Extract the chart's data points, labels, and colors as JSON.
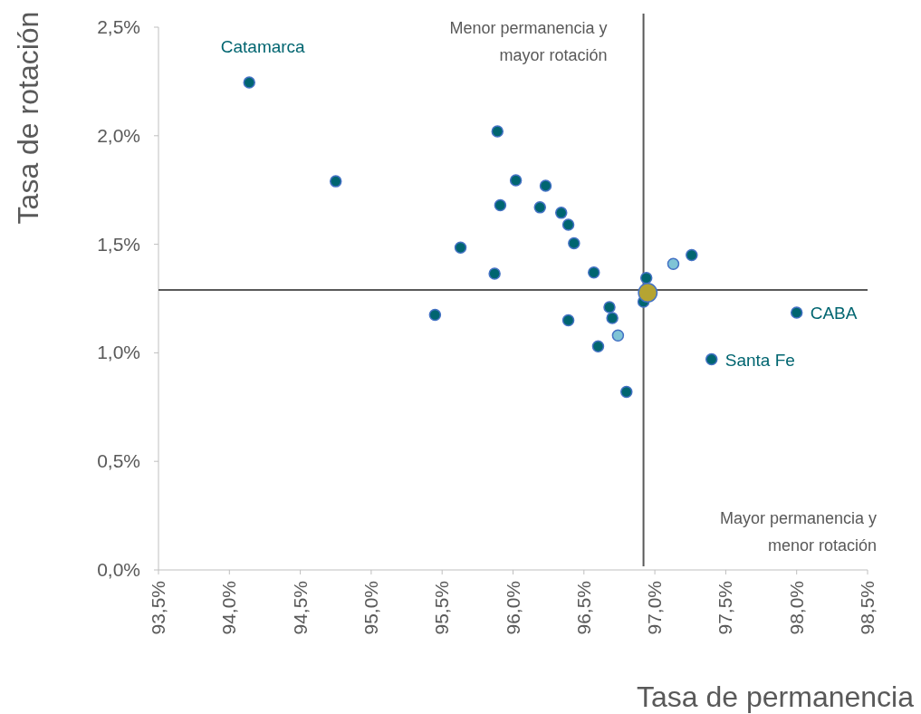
{
  "chart_data": {
    "type": "scatter",
    "xlabel": "Tasa de permanencia",
    "ylabel": "Tasa de rotación",
    "marker": "circle",
    "grid": false,
    "xlim": [
      93.5,
      98.5
    ],
    "xticks": [
      {
        "value": 93.5,
        "label": "93,5%"
      },
      {
        "value": 94,
        "label": "94,0%"
      },
      {
        "value": 94.5,
        "label": "94,5%"
      },
      {
        "value": 95,
        "label": "95,0%"
      },
      {
        "value": 95.5,
        "label": "95,5%"
      },
      {
        "value": 96,
        "label": "96,0%"
      },
      {
        "value": 96.5,
        "label": "96,5%"
      },
      {
        "value": 97,
        "label": "97,0%"
      },
      {
        "value": 97.5,
        "label": "97,5%"
      },
      {
        "value": 98,
        "label": "98,0%"
      },
      {
        "value": 98.5,
        "label": "98,5%"
      }
    ],
    "ylim": [
      0,
      2.5
    ],
    "yticks": [
      {
        "value": 0,
        "label": "0,0%"
      },
      {
        "value": 0.5,
        "label": "0,5%"
      },
      {
        "value": 1,
        "label": "1,0%"
      },
      {
        "value": 1.5,
        "label": "1,5%"
      },
      {
        "value": 2,
        "label": "2,0%"
      },
      {
        "value": 2.5,
        "label": "2,5%"
      }
    ],
    "series": [
      {
        "color": "#006570",
        "x": [
          94.14,
          94.75,
          95.89,
          96.02,
          96.23,
          95.91,
          96.19,
          96.34,
          96.39,
          96.43,
          95.63,
          95.87,
          96.57,
          95.45,
          96.39,
          96.68,
          96.7,
          96.6,
          96.8,
          96.94,
          96.92,
          97.26,
          97.4,
          98.0
        ],
        "values": [
          2.245,
          1.79,
          2.02,
          1.795,
          1.77,
          1.68,
          1.67,
          1.645,
          1.59,
          1.505,
          1.485,
          1.365,
          1.37,
          1.175,
          1.15,
          1.21,
          1.16,
          1.03,
          0.82,
          1.345,
          1.235,
          1.45,
          0.97,
          1.185
        ]
      },
      {
        "color": "#7fc4d6",
        "x": [
          96.74,
          97.13
        ],
        "values": [
          1.08,
          1.41
        ]
      },
      {
        "color": "#b5a432",
        "x": [
          96.95
        ],
        "values": [
          1.277
        ]
      }
    ],
    "ref_lines": [
      {
        "axis": "x",
        "value": 96.92,
        "color": "#595959"
      },
      {
        "axis": "y",
        "value": 1.29,
        "color": "#595959"
      }
    ],
    "annotations": [
      {
        "text": "Catamarca",
        "x": 94.14,
        "y": 2.245
      },
      {
        "text": "CABA",
        "x": 98.0,
        "y": 1.185
      },
      {
        "text": "Santa Fe",
        "x": 97.4,
        "y": 0.97
      },
      "Menor permanencia y\nmayor rotación",
      "Mayor permanencia y\nmenor rotación"
    ]
  }
}
